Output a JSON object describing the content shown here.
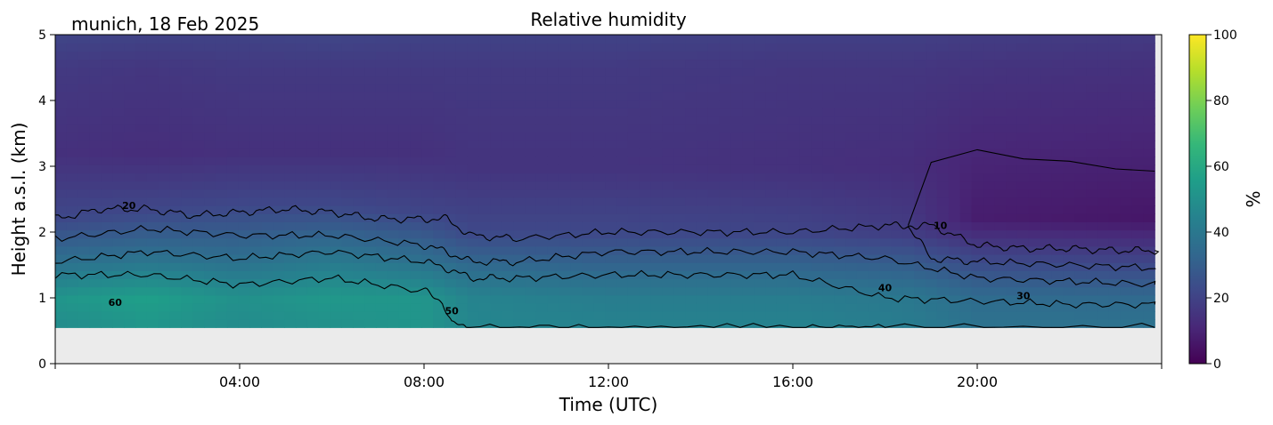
{
  "location_label": "munich, 18 Feb 2025",
  "chart_data": {
    "type": "heatmap",
    "title": "Relative humidity",
    "xlabel": "Time (UTC)",
    "ylabel": "Height a.s.l. (km)",
    "x_range_hours": [
      0,
      24
    ],
    "xlim": [
      "00:00",
      "24:00"
    ],
    "ylim": [
      0,
      5
    ],
    "x_ticks": [
      {
        "hour": 4,
        "label": "04:00"
      },
      {
        "hour": 8,
        "label": "08:00"
      },
      {
        "hour": 12,
        "label": "12:00"
      },
      {
        "hour": 16,
        "label": "16:00"
      },
      {
        "hour": 20,
        "label": "20:00"
      }
    ],
    "y_ticks": [
      {
        "value": 0,
        "label": "0"
      },
      {
        "value": 1,
        "label": "1"
      },
      {
        "value": 2,
        "label": "2"
      },
      {
        "value": 3,
        "label": "3"
      },
      {
        "value": 4,
        "label": "4"
      },
      {
        "value": 5,
        "label": "5"
      }
    ],
    "colorbar": {
      "label": "%",
      "range": [
        0,
        100
      ],
      "ticks": [
        0,
        20,
        40,
        60,
        80,
        100
      ],
      "colormap": "viridis",
      "colors": [
        "#440154",
        "#482878",
        "#3e4989",
        "#31688e",
        "#26828e",
        "#1f9e89",
        "#35b779",
        "#6ece58",
        "#b5de2b",
        "#fde725"
      ]
    },
    "data_min_height_km": 0.55,
    "no_data_color": "#ebebeb",
    "grid": false,
    "humidity_columns": [
      {
        "hour": 0.0,
        "profile": [
          [
            0.55,
            48
          ],
          [
            1.0,
            52
          ],
          [
            1.5,
            38
          ],
          [
            2.2,
            22
          ],
          [
            3.2,
            14
          ],
          [
            4.5,
            17
          ],
          [
            5.0,
            21
          ]
        ]
      },
      {
        "hour": 2.0,
        "profile": [
          [
            0.55,
            52
          ],
          [
            1.0,
            56
          ],
          [
            1.6,
            38
          ],
          [
            2.3,
            22
          ],
          [
            3.2,
            13
          ],
          [
            4.5,
            16
          ],
          [
            5.0,
            20
          ]
        ]
      },
      {
        "hour": 4.0,
        "profile": [
          [
            0.55,
            48
          ],
          [
            1.0,
            50
          ],
          [
            1.6,
            36
          ],
          [
            2.4,
            22
          ],
          [
            3.2,
            14
          ],
          [
            4.5,
            17
          ],
          [
            5.0,
            20
          ]
        ]
      },
      {
        "hour": 6.0,
        "profile": [
          [
            0.55,
            50
          ],
          [
            1.0,
            53
          ],
          [
            1.7,
            38
          ],
          [
            2.4,
            22
          ],
          [
            3.2,
            14
          ],
          [
            4.5,
            17
          ],
          [
            5.0,
            21
          ]
        ]
      },
      {
        "hour": 8.0,
        "profile": [
          [
            0.55,
            52
          ],
          [
            1.0,
            52
          ],
          [
            1.6,
            36
          ],
          [
            2.3,
            21
          ],
          [
            3.2,
            14
          ],
          [
            4.5,
            17
          ],
          [
            5.0,
            20
          ]
        ]
      },
      {
        "hour": 9.0,
        "profile": [
          [
            0.55,
            46
          ],
          [
            1.0,
            45
          ],
          [
            1.5,
            34
          ],
          [
            2.0,
            22
          ],
          [
            3.0,
            15
          ],
          [
            4.5,
            17
          ],
          [
            5.0,
            20
          ]
        ]
      },
      {
        "hour": 12.0,
        "profile": [
          [
            0.55,
            45
          ],
          [
            1.0,
            42
          ],
          [
            1.5,
            32
          ],
          [
            2.0,
            22
          ],
          [
            3.0,
            15
          ],
          [
            4.5,
            17
          ],
          [
            5.0,
            20
          ]
        ]
      },
      {
        "hour": 16.0,
        "profile": [
          [
            0.55,
            45
          ],
          [
            1.0,
            42
          ],
          [
            1.5,
            32
          ],
          [
            2.0,
            21
          ],
          [
            3.0,
            14
          ],
          [
            4.5,
            16
          ],
          [
            5.0,
            19
          ]
        ]
      },
      {
        "hour": 18.5,
        "profile": [
          [
            0.55,
            42
          ],
          [
            1.0,
            40
          ],
          [
            1.5,
            30
          ],
          [
            2.0,
            18
          ],
          [
            3.0,
            13
          ],
          [
            4.5,
            16
          ],
          [
            5.0,
            19
          ]
        ]
      },
      {
        "hour": 20.0,
        "profile": [
          [
            0.55,
            38
          ],
          [
            1.0,
            35
          ],
          [
            1.5,
            24
          ],
          [
            2.2,
            8
          ],
          [
            3.0,
            10
          ],
          [
            4.5,
            15
          ],
          [
            5.0,
            18
          ]
        ]
      },
      {
        "hour": 24.0,
        "profile": [
          [
            0.55,
            38
          ],
          [
            1.0,
            34
          ],
          [
            1.5,
            22
          ],
          [
            2.2,
            6
          ],
          [
            3.0,
            9
          ],
          [
            4.5,
            14
          ],
          [
            5.0,
            17
          ]
        ]
      }
    ],
    "contours": [
      {
        "level": 10,
        "label": "10",
        "hours": [
          18.5,
          19.0,
          20.0,
          21.0,
          22.0,
          23.0,
          24.0
        ],
        "heights": [
          2.1,
          2.1,
          1.8,
          1.75,
          1.75,
          1.72,
          1.72
        ],
        "close_upper": [
          3.05,
          3.25,
          3.1,
          3.1,
          2.95,
          2.9
        ]
      },
      {
        "level": 20,
        "label": "20",
        "hours": [
          0,
          1,
          2,
          3,
          4,
          5,
          6,
          7,
          8,
          8.5,
          9,
          10,
          12,
          14,
          16,
          18,
          18.5,
          19,
          20,
          22,
          24
        ],
        "heights": [
          2.2,
          2.35,
          2.35,
          2.25,
          2.3,
          2.35,
          2.3,
          2.2,
          2.2,
          2.2,
          1.95,
          1.9,
          2.0,
          2.0,
          2.0,
          2.1,
          2.1,
          1.6,
          1.55,
          1.5,
          1.45
        ]
      },
      {
        "level": 30,
        "label": "30",
        "hours": [
          0,
          2,
          4,
          6,
          8,
          8.5,
          9,
          10,
          12,
          14,
          16,
          18,
          20,
          22,
          24
        ],
        "heights": [
          1.9,
          2.05,
          1.95,
          1.95,
          1.8,
          1.7,
          1.55,
          1.55,
          1.7,
          1.7,
          1.7,
          1.6,
          1.3,
          1.25,
          1.2
        ]
      },
      {
        "level": 40,
        "label": "40",
        "hours": [
          0,
          2,
          4,
          6,
          8,
          8.5,
          9,
          10,
          12,
          14,
          16,
          18,
          20,
          22,
          24
        ],
        "heights": [
          1.55,
          1.7,
          1.6,
          1.7,
          1.55,
          1.45,
          1.3,
          1.3,
          1.35,
          1.35,
          1.35,
          1.0,
          0.95,
          0.9,
          0.9
        ]
      },
      {
        "level": 50,
        "label": "50",
        "hours": [
          0,
          2,
          4,
          6,
          8,
          8.4,
          8.6,
          9,
          12,
          16,
          18,
          24
        ],
        "heights": [
          1.35,
          1.35,
          1.2,
          1.3,
          1.1,
          0.95,
          0.6,
          0.55,
          0.55,
          0.55,
          0.55,
          0.55
        ]
      },
      {
        "level": 60,
        "label": "60",
        "label_hour": 1.3,
        "label_height": 0.85
      }
    ],
    "contour_labels": [
      {
        "text": "20",
        "hour": 1.6,
        "height": 2.35
      },
      {
        "text": "10",
        "hour": 19.2,
        "height": 2.05
      },
      {
        "text": "30",
        "hour": 21.0,
        "height": 0.98
      },
      {
        "text": "40",
        "hour": 18.0,
        "height": 1.1
      },
      {
        "text": "50",
        "hour": 8.6,
        "height": 0.75
      },
      {
        "text": "60",
        "hour": 1.3,
        "height": 0.88
      }
    ]
  }
}
